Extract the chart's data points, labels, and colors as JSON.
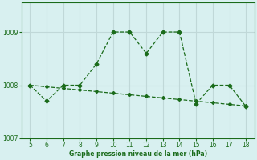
{
  "x": [
    5,
    6,
    7,
    8,
    9,
    10,
    11,
    12,
    13,
    14,
    15,
    16,
    17,
    18
  ],
  "y_data": [
    1008.0,
    1007.7,
    1008.0,
    1008.0,
    1008.4,
    1009.0,
    1009.0,
    1008.6,
    1009.0,
    1009.0,
    1007.65,
    1008.0,
    1008.0,
    1007.6
  ],
  "y_trend": [
    1008.0,
    1007.97,
    1007.94,
    1007.91,
    1007.88,
    1007.85,
    1007.82,
    1007.79,
    1007.76,
    1007.73,
    1007.7,
    1007.67,
    1007.64,
    1007.61
  ],
  "line_color": "#1a6b1a",
  "bg_color": "#d8f0f0",
  "grid_color": "#c0d8d8",
  "ylabel_ticks": [
    1007,
    1008,
    1009
  ],
  "xlabel": "Graphe pression niveau de la mer (hPa)",
  "xlim": [
    4.5,
    18.5
  ],
  "ylim": [
    1007.0,
    1009.55
  ]
}
